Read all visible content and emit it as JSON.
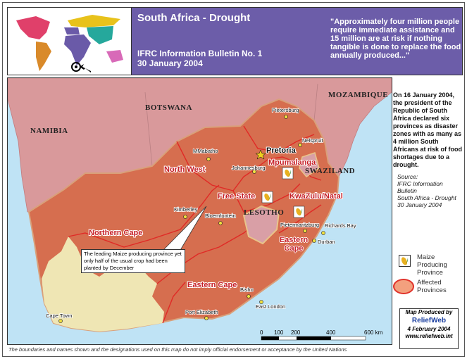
{
  "header": {
    "title": "South Africa - Drought",
    "bulletin": "IFRC Information Bulletin No. 1",
    "date": "30 January 2004",
    "quote": "\"Approximately four million people require immediate assistance and 15 million are at risk if nothing tangible is done to replace the food annually produced...\""
  },
  "map": {
    "countries": [
      "NAMIBIA",
      "BOTSWANA",
      "MOZAMBIQUE",
      "SWAZILAND",
      "LESOTHO"
    ],
    "provinces": [
      "North West",
      "Mpumalanga",
      "Free State",
      "KwaZulu/Natal",
      "Northern Cape",
      "Eastern Cape",
      "Eastern Cape"
    ],
    "capital": "Pretoria",
    "cities": [
      "Pietersburg",
      "Nelspruit",
      "MMabatho",
      "Johannesburg",
      "Kimberley",
      "Bloemfontein",
      "Richards Bay",
      "Pietermaritzburg",
      "Durban",
      "Bisho",
      "East London",
      "Port Elizabeth",
      "Cape Town"
    ],
    "callout": "The leading Maize producing province yet only half of the usual crop had been planted by December",
    "scale": {
      "ticks": [
        "0",
        "100",
        "200",
        "400",
        "600 km"
      ]
    },
    "colors": {
      "ocean": "#bfe3f5",
      "neighbor": "#d9999b",
      "affected": "#d66e4f",
      "unaffected": "#efe6b4",
      "border": "#e02a26"
    }
  },
  "side": {
    "description": "On 16 January 2004, the president of the Republic of South Africa declared six provinces as disaster zones with as many as 4 million South Africans at risk of food shortages due to a drought.",
    "source": [
      "Source:",
      "IFRC Information Bulletin",
      "South Africa - Drought",
      "30 January 2004"
    ]
  },
  "legend": {
    "maize": "Maize Producing Province",
    "affected": "Affected Provinces"
  },
  "credit": {
    "produced_by": "Map Produced by",
    "logo": "ReliefWeb",
    "date": "4 February 2004",
    "url": "www.reliefweb.int"
  },
  "footer": "The boundaries and names shown and the designations used on this map do not imply official endorsement or acceptance by the United Nations"
}
